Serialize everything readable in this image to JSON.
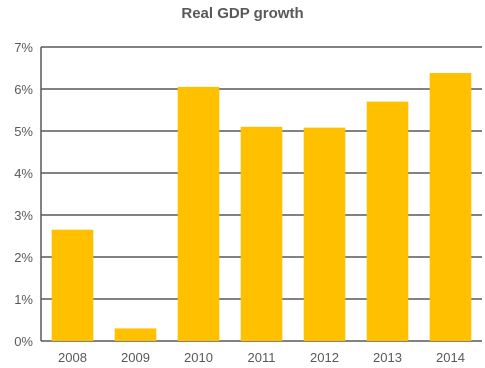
{
  "chart_data": {
    "type": "bar",
    "title": "Real GDP growth",
    "xlabel": "",
    "ylabel": "",
    "categories": [
      "2008",
      "2009",
      "2010",
      "2011",
      "2012",
      "2013",
      "2014"
    ],
    "series": [
      {
        "values": [
          2.65,
          0.3,
          6.05,
          5.1,
          5.08,
          5.7,
          6.38
        ]
      }
    ],
    "ylim": [
      0,
      7
    ],
    "yticks": [
      "0%",
      "1%",
      "2%",
      "3%",
      "4%",
      "5%",
      "6%",
      "7%"
    ],
    "grid": true,
    "legend": "none",
    "colors": {
      "bar": "#FFC000",
      "grid": "#595959",
      "text": "#595959"
    }
  }
}
